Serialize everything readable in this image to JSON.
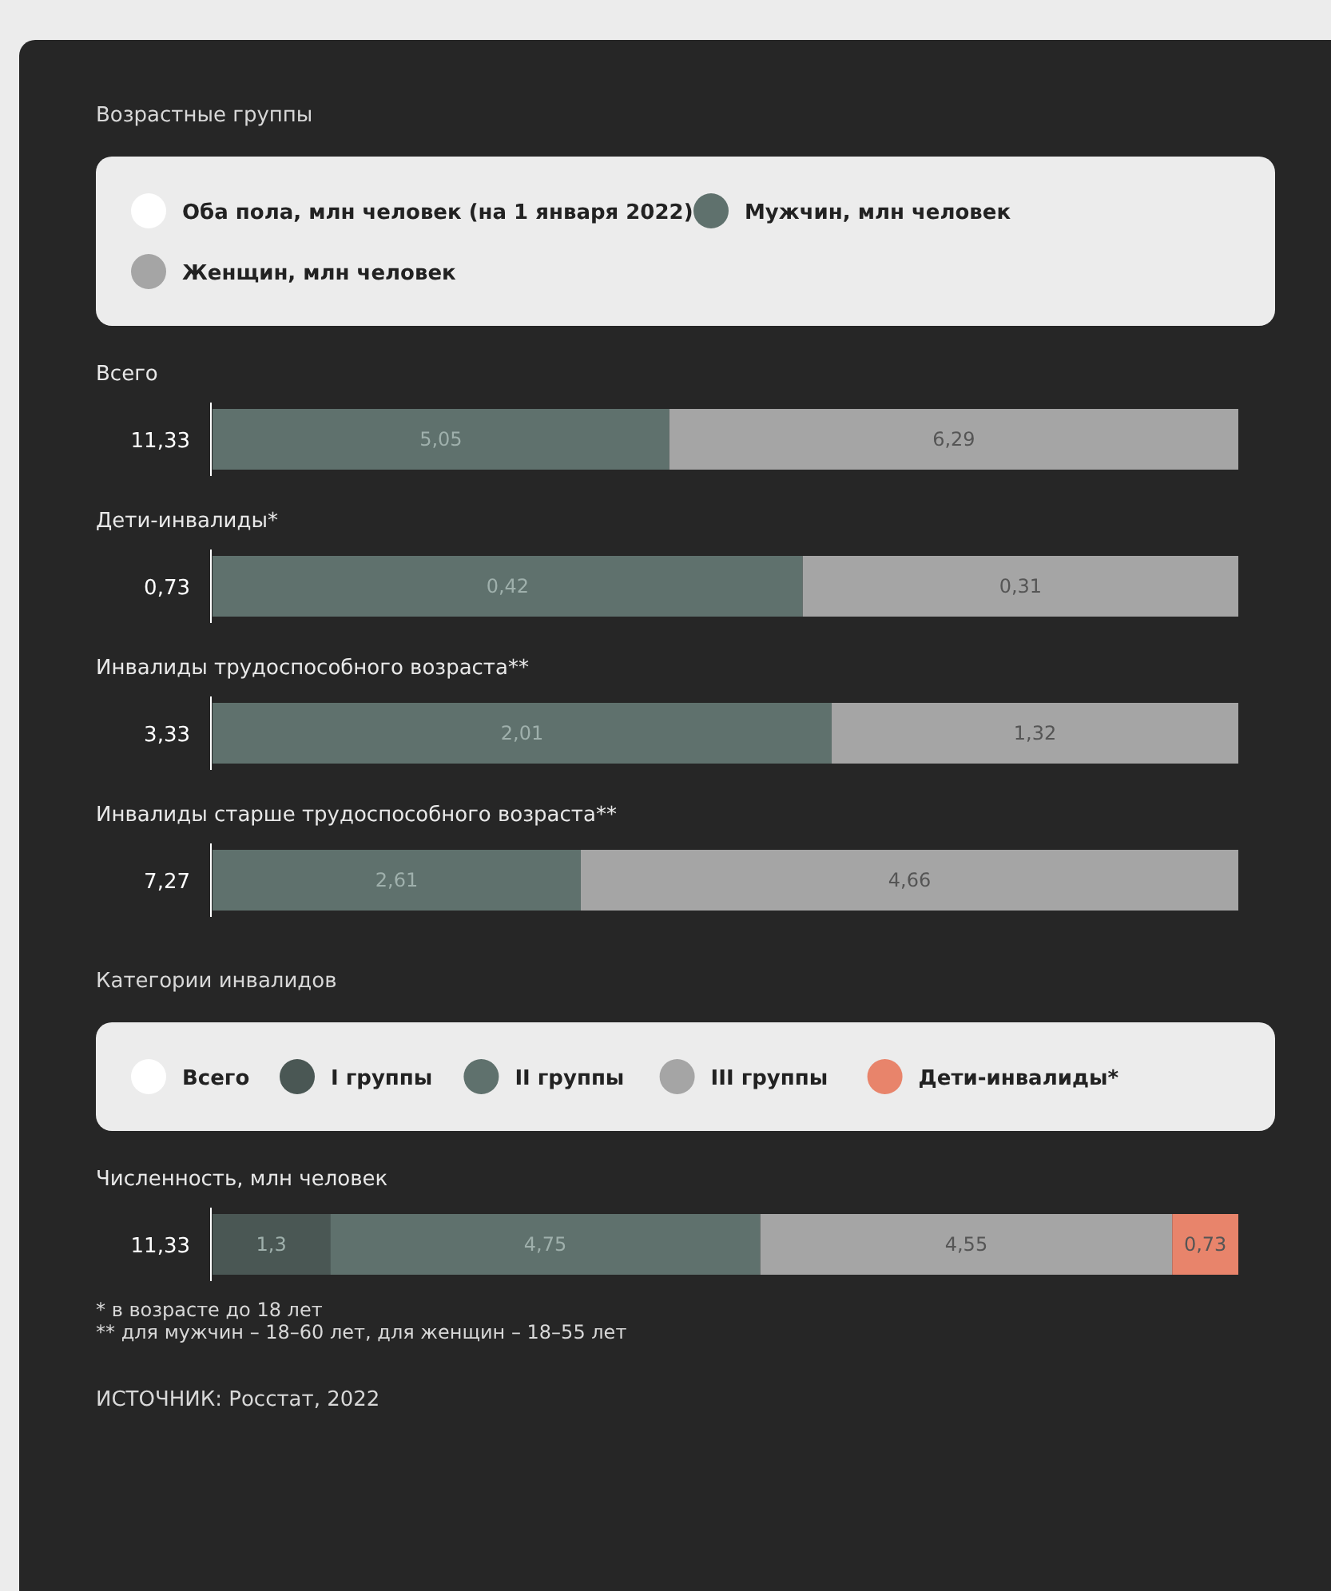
{
  "chart_data": [
    {
      "type": "bar",
      "title": "Возрастные группы",
      "orientation": "horizontal",
      "stacked": true,
      "legend": "top",
      "categories": [
        "Всего"
      ],
      "totals": [
        "11,33"
      ],
      "series": [
        {
          "name": "Оба пола, млн человек (на 1 января 2022)",
          "type": "other",
          "color": "#ffffff",
          "values": [
            null
          ]
        },
        {
          "name": "Мужчин, млн человек",
          "color": "#5f716d",
          "values": [
            5.05
          ],
          "value_labels": [
            "5,05"
          ]
        },
        {
          "name": "Женщин, млн человек",
          "color": "#a5a5a5",
          "values": [
            6.29
          ],
          "value_labels": [
            "6,29"
          ]
        }
      ]
    },
    {
      "type": "bar",
      "orientation": "horizontal",
      "stacked": true,
      "categories": [
        "Дети-инвалиды*"
      ],
      "totals": [
        "0,73"
      ],
      "series": [
        {
          "type": "other",
          "color": "#ffffff",
          "values": [
            null
          ]
        },
        {
          "color": "#5f716d",
          "values": [
            0.42
          ],
          "value_labels": [
            "0,42"
          ]
        },
        {
          "color": "#a5a5a5",
          "values": [
            0.31
          ],
          "value_labels": [
            "0,31"
          ]
        }
      ]
    },
    {
      "type": "bar",
      "orientation": "horizontal",
      "stacked": true,
      "categories": [
        "Инвалиды трудоспособного возраста**"
      ],
      "totals": [
        "3,33"
      ],
      "series": [
        {
          "type": "other",
          "color": "#ffffff",
          "values": [
            null
          ]
        },
        {
          "color": "#5f716d",
          "values": [
            2.01
          ],
          "value_labels": [
            "2,01"
          ]
        },
        {
          "color": "#a5a5a5",
          "values": [
            1.32
          ],
          "value_labels": [
            "1,32"
          ]
        }
      ]
    },
    {
      "type": "bar",
      "orientation": "horizontal",
      "stacked": true,
      "categories": [
        "Инвалиды старше трудоспособного возраста**"
      ],
      "totals": [
        "7,27"
      ],
      "series": [
        {
          "type": "other",
          "color": "#ffffff",
          "values": [
            null
          ]
        },
        {
          "color": "#5f716d",
          "values": [
            2.61
          ],
          "value_labels": [
            "2,61"
          ]
        },
        {
          "color": "#a5a5a5",
          "values": [
            4.66
          ],
          "value_labels": [
            "4,66"
          ]
        }
      ]
    },
    {
      "type": "bar",
      "title": "Категории инвалидов",
      "orientation": "horizontal",
      "stacked": true,
      "legend": "top",
      "categories": [
        "Численность, млн человек"
      ],
      "totals": [
        "11,33"
      ],
      "series": [
        {
          "name": "Всего",
          "type": "other",
          "color": "#ffffff",
          "values": [
            null
          ]
        },
        {
          "name": "I группы",
          "color": "#4a5754",
          "values": [
            1.3
          ],
          "value_labels": [
            "1,3"
          ]
        },
        {
          "name": "II группы",
          "color": "#5f716d",
          "values": [
            4.75
          ],
          "value_labels": [
            "4,75"
          ]
        },
        {
          "name": "III группы",
          "color": "#a5a5a5",
          "values": [
            4.55
          ],
          "value_labels": [
            "4,55"
          ]
        },
        {
          "name": "Дети-инвалиды*",
          "color": "#e8846b",
          "values": [
            0.73
          ],
          "value_labels": [
            "0,73"
          ]
        }
      ],
      "annotations": [
        "* в возрасте до 18 лет",
        "** для мужчин – 18–60 лет, для женщин – 18–55 лет",
        "ИСТОЧНИК: Росстат, 2022"
      ]
    }
  ]
}
